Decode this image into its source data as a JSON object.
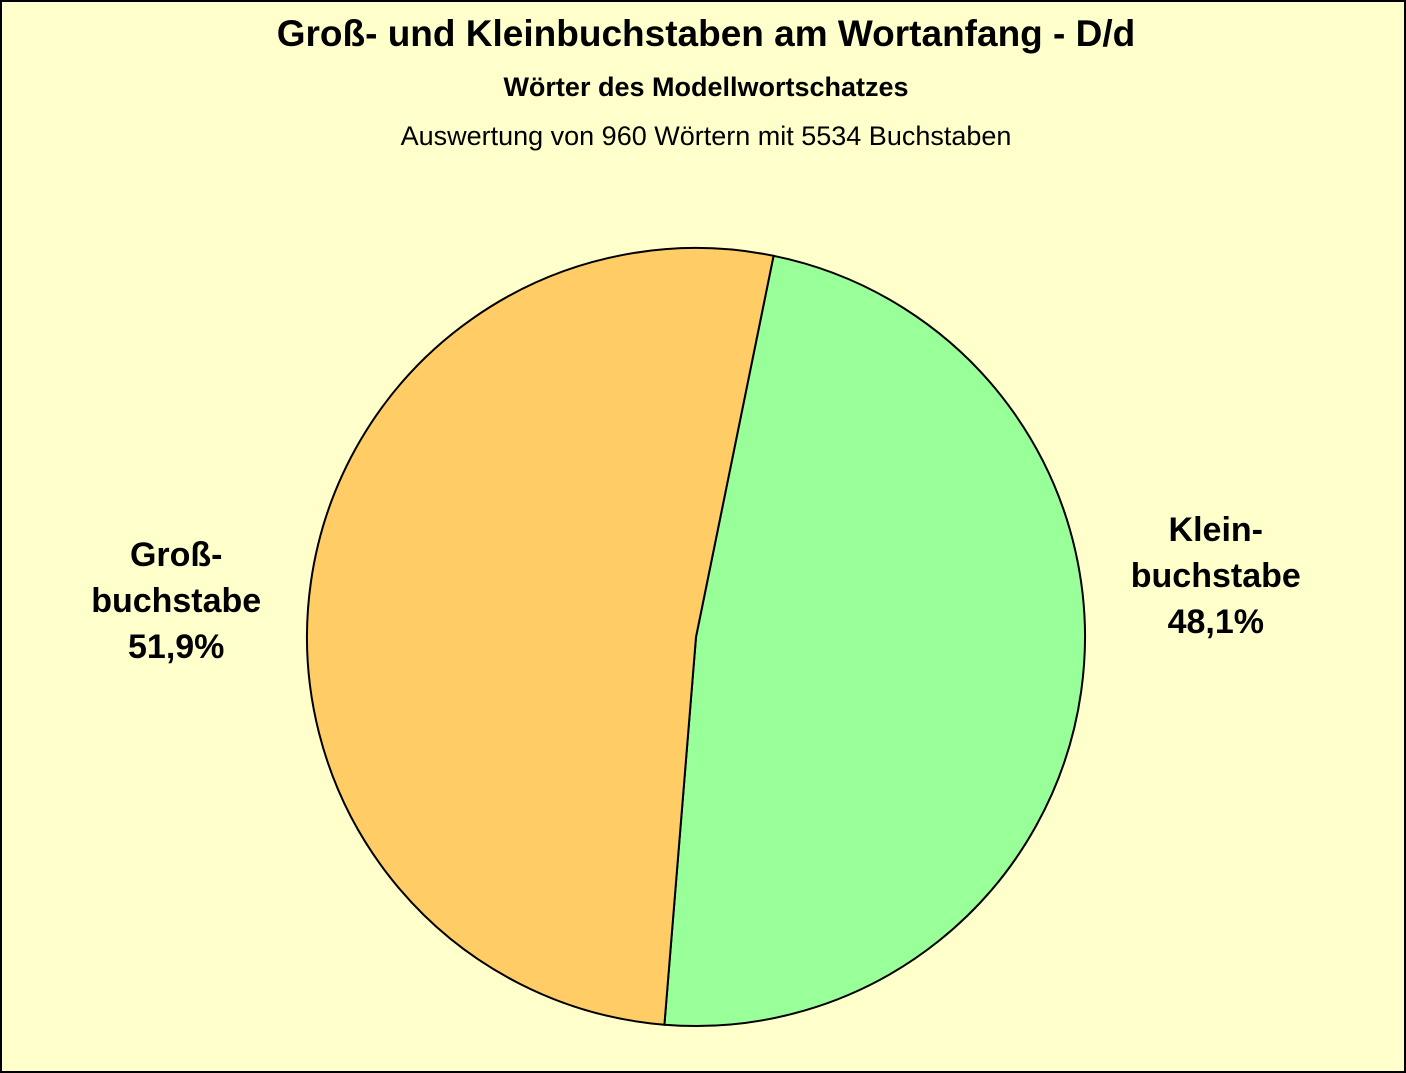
{
  "chart_data": {
    "type": "pie",
    "title": "Groß- und  Kleinbuchstaben am Wortanfang - D/d",
    "subtitle": "Wörter des Modellwortschatzes",
    "note": "Auswertung von 960 Wörtern mit 5534 Buchstaben",
    "categories": [
      [
        "Klein-",
        "buchstabe"
      ],
      [
        "Groß-",
        "buchstabe"
      ]
    ],
    "values": [
      48.1,
      51.9
    ],
    "value_labels": [
      "48,1%",
      "51,9%"
    ],
    "colors": [
      "#99ff99",
      "#ffcc66"
    ]
  }
}
